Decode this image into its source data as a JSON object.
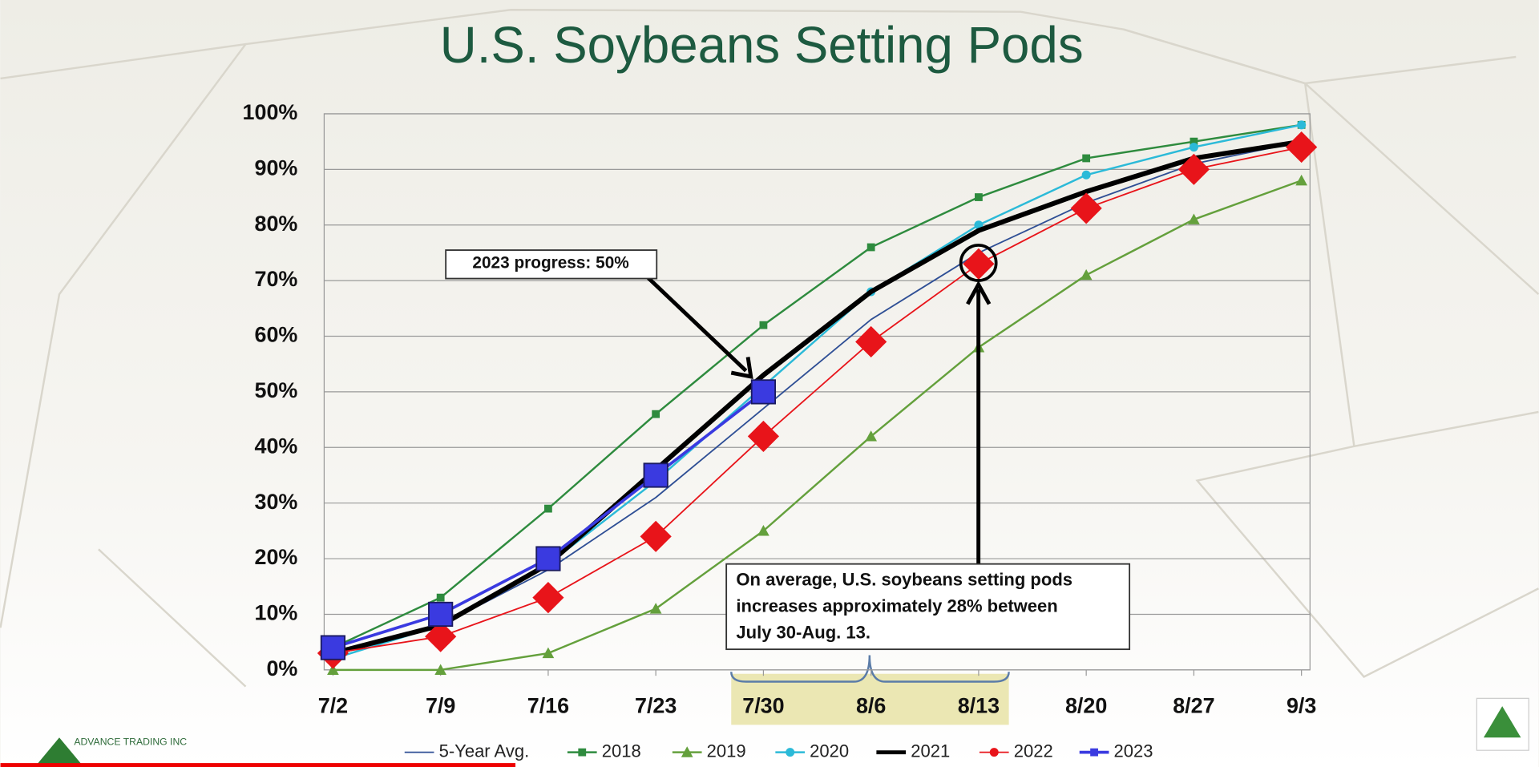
{
  "chart_data": {
    "type": "line",
    "title": "U.S. Soybeans Setting Pods",
    "categories": [
      "7/2",
      "7/9",
      "7/16",
      "7/23",
      "7/30",
      "8/6",
      "8/13",
      "8/20",
      "8/27",
      "9/3"
    ],
    "ylim": [
      0,
      100
    ],
    "yticks": [
      {
        "value": 0,
        "label": "0%"
      },
      {
        "value": 10,
        "label": "10%"
      },
      {
        "value": 20,
        "label": "20%"
      },
      {
        "value": 30,
        "label": "30%"
      },
      {
        "value": 40,
        "label": "40%"
      },
      {
        "value": 50,
        "label": "50%"
      },
      {
        "value": 60,
        "label": "60%"
      },
      {
        "value": 70,
        "label": "70%"
      },
      {
        "value": 80,
        "label": "80%"
      },
      {
        "value": 90,
        "label": "90%"
      },
      {
        "value": 100,
        "label": "100%"
      }
    ],
    "grid": true,
    "legend": "bottom",
    "series": [
      {
        "name": "5-Year Avg.",
        "color": "#2f4f95",
        "marker": "none",
        "width": 1.5,
        "values": [
          3,
          8,
          18,
          31,
          47,
          63,
          75,
          84,
          91,
          95
        ]
      },
      {
        "name": "2018",
        "color": "#2e8b3e",
        "marker": "square",
        "width": 2,
        "values": [
          4,
          13,
          29,
          46,
          62,
          76,
          85,
          92,
          95,
          98
        ]
      },
      {
        "name": "2019",
        "color": "#64a03c",
        "marker": "triangle",
        "width": 2,
        "values": [
          0,
          0,
          3,
          11,
          25,
          42,
          58,
          71,
          81,
          88
        ]
      },
      {
        "name": "2020",
        "color": "#2bbad8",
        "marker": "circle",
        "width": 2,
        "values": [
          2,
          8,
          19,
          34,
          51,
          68,
          80,
          89,
          94,
          98
        ]
      },
      {
        "name": "2021",
        "color": "#000000",
        "marker": "none",
        "width": 5,
        "values": [
          3,
          8,
          19,
          36,
          53,
          68,
          79,
          86,
          92,
          95
        ]
      },
      {
        "name": "2022",
        "color": "#e8141a",
        "marker": "diamond",
        "width": 1.5,
        "values": [
          3,
          6,
          13,
          24,
          42,
          59,
          73,
          83,
          90,
          94
        ]
      },
      {
        "name": "2023",
        "color": "#3a3ae0",
        "marker": "square-large",
        "width": 3,
        "values": [
          4,
          10,
          20,
          35,
          50,
          null,
          null,
          null,
          null,
          null
        ]
      }
    ],
    "annotations": [
      "2023 progress: 50%",
      "On average, U.S. soybeans setting pods",
      "increases approximately 28% between",
      "July 30-Aug. 13."
    ],
    "logo": "ADVANCE TRADING INC"
  }
}
